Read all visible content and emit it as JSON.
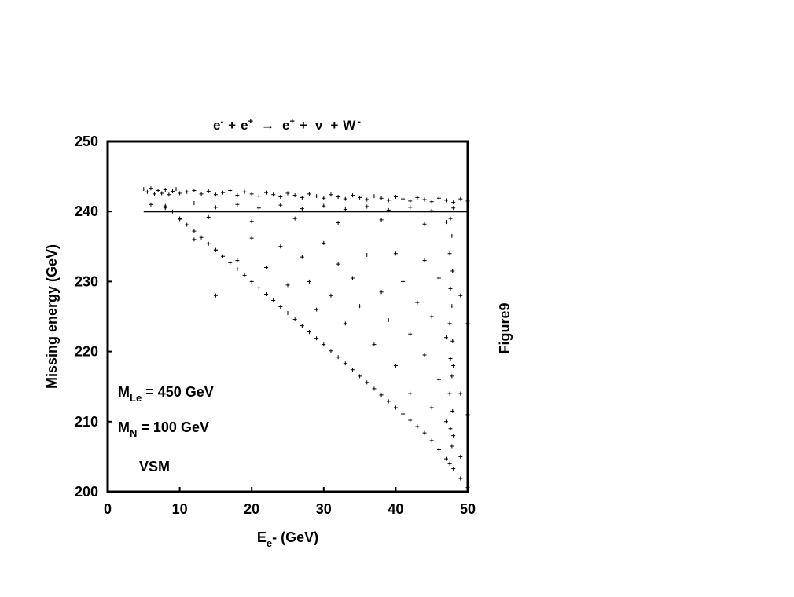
{
  "chart_data": {
    "type": "scatter",
    "title_parts": {
      "e_minus": "e",
      "sup_minus": "-",
      "plus1": "+",
      "e_plus": "e",
      "sup_plus": "+",
      "arrow": "→",
      "e_plus2": "e",
      "sup_plus2": "+",
      "plus2": "+",
      "nu": "ν",
      "plus3": "+",
      "w": "W",
      "sup_w": "-"
    },
    "xlabel_parts": {
      "e": "E",
      "sub": "e",
      "tail": "- (GeV)"
    },
    "ylabel": "Missing energy (GeV)",
    "side_label": "Figure9",
    "xlim": [
      0,
      50
    ],
    "ylim": [
      200,
      250
    ],
    "xticks": [
      "0",
      "10",
      "20",
      "30",
      "40",
      "50"
    ],
    "yticks": [
      "200",
      "210",
      "220",
      "230",
      "240",
      "250"
    ],
    "grid": false,
    "annotations": {
      "mle": {
        "m": "M",
        "sub": "Le",
        "rest": " = 450 GeV"
      },
      "mn": {
        "m": "M",
        "sub": "N",
        "rest": " = 100 GeV"
      },
      "model": "VSM"
    },
    "series": [
      {
        "description_values": "upper band near 240–243 GeV",
        "points": [
          [
            5.0,
            243.2
          ],
          [
            5.5,
            242.8
          ],
          [
            6.0,
            243.3
          ],
          [
            6.5,
            242.5
          ],
          [
            7.0,
            243.0
          ],
          [
            7.5,
            242.6
          ],
          [
            8.0,
            243.1
          ],
          [
            8.5,
            242.4
          ],
          [
            9.0,
            242.9
          ],
          [
            9.5,
            243.2
          ],
          [
            10.0,
            242.6
          ],
          [
            11.0,
            242.8
          ],
          [
            12.0,
            243.0
          ],
          [
            13.0,
            242.5
          ],
          [
            14.0,
            242.9
          ],
          [
            15.0,
            242.4
          ],
          [
            16.0,
            242.7
          ],
          [
            17.0,
            243.0
          ],
          [
            18.0,
            242.3
          ],
          [
            19.0,
            242.8
          ],
          [
            20.0,
            242.5
          ],
          [
            21.0,
            242.2
          ],
          [
            22.0,
            242.7
          ],
          [
            23.0,
            242.4
          ],
          [
            24.0,
            242.1
          ],
          [
            25.0,
            242.6
          ],
          [
            26.0,
            242.3
          ],
          [
            27.0,
            242.0
          ],
          [
            28.0,
            242.5
          ],
          [
            29.0,
            242.2
          ],
          [
            30.0,
            241.9
          ],
          [
            31.0,
            242.4
          ],
          [
            32.0,
            242.1
          ],
          [
            33.0,
            241.8
          ],
          [
            34.0,
            242.3
          ],
          [
            35.0,
            242.0
          ],
          [
            36.0,
            241.7
          ],
          [
            37.0,
            242.2
          ],
          [
            38.0,
            241.9
          ],
          [
            39.0,
            241.6
          ],
          [
            40.0,
            242.1
          ],
          [
            41.0,
            241.8
          ],
          [
            42.0,
            241.5
          ],
          [
            43.0,
            242.0
          ],
          [
            44.0,
            241.7
          ],
          [
            45.0,
            241.4
          ],
          [
            46.0,
            241.9
          ],
          [
            47.0,
            241.6
          ],
          [
            48.0,
            241.3
          ],
          [
            49.0,
            241.8
          ],
          [
            50.0,
            241.5
          ],
          [
            6.0,
            241.0
          ],
          [
            8.0,
            240.8
          ],
          [
            12.0,
            241.2
          ],
          [
            15.0,
            240.6
          ],
          [
            18.0,
            241.0
          ],
          [
            21.0,
            240.5
          ],
          [
            24.0,
            240.9
          ],
          [
            27.0,
            240.4
          ],
          [
            30.0,
            240.8
          ],
          [
            33.0,
            240.3
          ],
          [
            36.0,
            240.7
          ],
          [
            39.0,
            240.2
          ],
          [
            42.0,
            240.6
          ],
          [
            45.0,
            240.1
          ],
          [
            48.0,
            240.5
          ],
          [
            10.0,
            238.9
          ],
          [
            14.0,
            239.2
          ],
          [
            20.0,
            238.6
          ],
          [
            26.0,
            239.0
          ],
          [
            32.0,
            238.4
          ],
          [
            38.0,
            238.8
          ],
          [
            44.0,
            238.2
          ],
          [
            47.0,
            238.5
          ]
        ]
      },
      {
        "description_values": "diagonal edge from ~(5,240) to (50,200)",
        "points": [
          [
            8.0,
            240.5
          ],
          [
            9.0,
            240.0
          ],
          [
            10.0,
            239.0
          ],
          [
            11.0,
            238.1
          ],
          [
            12.0,
            237.2
          ],
          [
            13.0,
            236.3
          ],
          [
            14.0,
            235.4
          ],
          [
            15.0,
            234.5
          ],
          [
            16.0,
            233.6
          ],
          [
            17.0,
            232.7
          ],
          [
            18.0,
            231.8
          ],
          [
            19.0,
            230.9
          ],
          [
            20.0,
            230.0
          ],
          [
            21.0,
            229.1
          ],
          [
            22.0,
            228.2
          ],
          [
            23.0,
            227.3
          ],
          [
            24.0,
            226.4
          ],
          [
            25.0,
            225.5
          ],
          [
            26.0,
            224.6
          ],
          [
            27.0,
            223.7
          ],
          [
            28.0,
            222.8
          ],
          [
            29.0,
            221.9
          ],
          [
            30.0,
            221.0
          ],
          [
            31.0,
            220.1
          ],
          [
            32.0,
            219.2
          ],
          [
            33.0,
            218.3
          ],
          [
            34.0,
            217.4
          ],
          [
            35.0,
            216.5
          ],
          [
            36.0,
            215.6
          ],
          [
            37.0,
            214.7
          ],
          [
            38.0,
            213.8
          ],
          [
            39.0,
            212.9
          ],
          [
            40.0,
            212.0
          ],
          [
            41.0,
            211.1
          ],
          [
            42.0,
            210.2
          ],
          [
            43.0,
            209.3
          ],
          [
            44.0,
            208.4
          ],
          [
            45.0,
            207.3
          ],
          [
            46.0,
            206.0
          ],
          [
            47.0,
            204.7
          ],
          [
            48.0,
            203.3
          ],
          [
            49.0,
            201.9
          ],
          [
            50.0,
            200.6
          ]
        ]
      },
      {
        "description_values": "vertical cluster near x≈48",
        "points": [
          [
            47.6,
            239.0
          ],
          [
            47.8,
            236.5
          ],
          [
            47.5,
            234.0
          ],
          [
            47.9,
            231.5
          ],
          [
            47.6,
            229.0
          ],
          [
            47.8,
            226.5
          ],
          [
            47.5,
            224.0
          ],
          [
            47.9,
            221.5
          ],
          [
            47.6,
            219.0
          ],
          [
            47.8,
            216.5
          ],
          [
            47.5,
            214.0
          ],
          [
            47.9,
            211.5
          ],
          [
            47.6,
            209.0
          ],
          [
            47.8,
            206.5
          ],
          [
            47.5,
            204.0
          ]
        ]
      },
      {
        "description_values": "interior scatter between diagonal and band",
        "points": [
          [
            12,
            236.0
          ],
          [
            15,
            234.5
          ],
          [
            18,
            233.0
          ],
          [
            20,
            236.2
          ],
          [
            22,
            232.0
          ],
          [
            24,
            235.0
          ],
          [
            25,
            229.5
          ],
          [
            27,
            233.5
          ],
          [
            28,
            230.0
          ],
          [
            29,
            226.0
          ],
          [
            30,
            235.5
          ],
          [
            31,
            228.0
          ],
          [
            32,
            232.5
          ],
          [
            33,
            224.0
          ],
          [
            34,
            230.5
          ],
          [
            35,
            226.5
          ],
          [
            36,
            233.8
          ],
          [
            37,
            221.0
          ],
          [
            38,
            228.5
          ],
          [
            39,
            224.5
          ],
          [
            40,
            234.0
          ],
          [
            40,
            218.0
          ],
          [
            41,
            230.0
          ],
          [
            42,
            222.5
          ],
          [
            42,
            214.0
          ],
          [
            43,
            227.0
          ],
          [
            44,
            219.5
          ],
          [
            44,
            233.0
          ],
          [
            45,
            212.0
          ],
          [
            45,
            225.0
          ],
          [
            46,
            216.0
          ],
          [
            46,
            230.5
          ],
          [
            47,
            210.0
          ],
          [
            47,
            222.0
          ],
          [
            48,
            208.0
          ],
          [
            48,
            218.0
          ],
          [
            49,
            205.0
          ],
          [
            49,
            214.0
          ],
          [
            49,
            228.0
          ],
          [
            50,
            211.0
          ],
          [
            50,
            224.0
          ],
          [
            15,
            228.0
          ]
        ]
      }
    ]
  }
}
